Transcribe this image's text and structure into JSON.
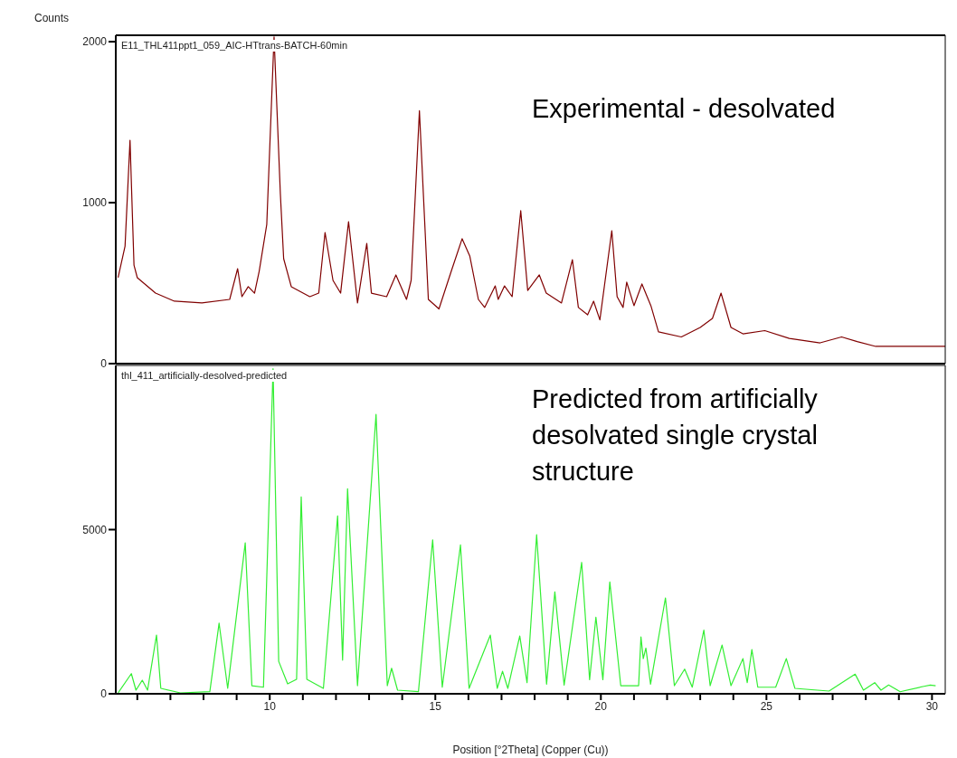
{
  "chart_data": [
    {
      "type": "line",
      "ylabel": "Counts",
      "tick_labels": "y",
      "xlim": [
        5.35,
        30.4
      ],
      "ylim": [
        0,
        2040
      ],
      "yticks": [
        0,
        1000,
        2000
      ],
      "annotations": [
        "Experimental - desolvated"
      ],
      "x": [
        5.42,
        5.63,
        5.78,
        5.9,
        6.0,
        6.55,
        7.12,
        7.95,
        8.79,
        9.03,
        9.16,
        9.35,
        9.54,
        9.68,
        9.91,
        10.13,
        10.32,
        10.42,
        10.65,
        11.21,
        11.48,
        11.67,
        11.91,
        12.14,
        12.38,
        12.65,
        12.93,
        13.07,
        13.53,
        13.81,
        14.13,
        14.27,
        14.52,
        14.79,
        15.11,
        15.48,
        15.81,
        16.04,
        16.3,
        16.49,
        16.81,
        16.9,
        17.09,
        17.32,
        17.58,
        17.79,
        18.14,
        18.35,
        18.81,
        19.14,
        19.32,
        19.6,
        19.78,
        19.97,
        20.33,
        20.49,
        20.67,
        20.78,
        21.0,
        21.24,
        21.51,
        21.74,
        22.43,
        23.0,
        23.37,
        23.63,
        23.93,
        24.29,
        24.95,
        25.69,
        26.62,
        27.27,
        27.74,
        28.3,
        29.41,
        30.4
      ],
      "series": [
        {
          "name": "E11_THL411ppt1_059_AIC-HTtrans-BATCH-60min",
          "color": "#800000",
          "values": [
            534,
            730,
            1388,
            612,
            534,
            438,
            388,
            377,
            399,
            590,
            416,
            478,
            438,
            573,
            865,
            2030,
            1057,
            652,
            478,
            416,
            438,
            815,
            517,
            438,
            882,
            377,
            747,
            438,
            416,
            551,
            399,
            517,
            1571,
            399,
            340,
            573,
            776,
            669,
            399,
            349,
            483,
            399,
            483,
            416,
            950,
            455,
            551,
            438,
            377,
            646,
            349,
            303,
            388,
            272,
            826,
            416,
            349,
            506,
            360,
            495,
            360,
            197,
            166,
            225,
            281,
            438,
            225,
            185,
            205,
            157,
            129,
            166,
            137,
            107,
            107,
            107
          ]
        }
      ]
    },
    {
      "type": "line",
      "xlabel": "Position [°2Theta] (Copper (Cu))",
      "xlim": [
        5.35,
        30.4
      ],
      "ylim": [
        0,
        10000
      ],
      "yticks": [
        0,
        5000
      ],
      "annotations": [
        "Predicted from artificially desolvated single crystal structure"
      ],
      "xticks": [
        {
          "value": 6,
          "label": null
        },
        {
          "value": 7,
          "label": null
        },
        {
          "value": 8,
          "label": null
        },
        {
          "value": 9,
          "label": null
        },
        10,
        {
          "value": 11,
          "label": null
        },
        {
          "value": 12,
          "label": null
        },
        {
          "value": 13,
          "label": null
        },
        {
          "value": 14,
          "label": null
        },
        15,
        {
          "value": 16,
          "label": null
        },
        {
          "value": 17,
          "label": null
        },
        {
          "value": 18,
          "label": null
        },
        {
          "value": 19,
          "label": null
        },
        20,
        {
          "value": 21,
          "label": null
        },
        {
          "value": 22,
          "label": null
        },
        {
          "value": 23,
          "label": null
        },
        {
          "value": 24,
          "label": null
        },
        25,
        {
          "value": 26,
          "label": null
        },
        {
          "value": 27,
          "label": null
        },
        {
          "value": 28,
          "label": null
        },
        {
          "value": 29,
          "label": null
        },
        30
      ],
      "x": [
        5.42,
        5.82,
        5.96,
        6.15,
        6.31,
        6.58,
        6.71,
        7.3,
        8.19,
        8.47,
        8.73,
        9.26,
        9.46,
        9.81,
        10.1,
        10.27,
        10.54,
        10.81,
        10.95,
        11.12,
        11.62,
        12.05,
        12.2,
        12.35,
        12.65,
        13.21,
        13.55,
        13.68,
        13.86,
        14.49,
        14.92,
        15.21,
        15.76,
        16.02,
        16.66,
        16.87,
        17.03,
        17.19,
        17.55,
        17.77,
        18.06,
        18.36,
        18.61,
        18.89,
        19.42,
        19.66,
        19.85,
        20.06,
        20.27,
        20.6,
        21.14,
        21.21,
        21.28,
        21.36,
        21.5,
        21.95,
        22.22,
        22.53,
        22.76,
        23.11,
        23.3,
        23.66,
        23.93,
        24.29,
        24.42,
        24.56,
        24.74,
        25.28,
        25.6,
        25.86,
        26.89,
        27.68,
        27.93,
        28.27,
        28.46,
        28.69,
        29.04,
        29.76,
        29.95,
        30.11
      ],
      "series": [
        {
          "name": "thl_411_artificially-desolved-predicted",
          "color": "#33ee33",
          "values": [
            27,
            613,
            110,
            412,
            110,
            1786,
            165,
            27,
            63,
            2150,
            165,
            4596,
            247,
            200,
            9900,
            989,
            302,
            440,
            5997,
            440,
            165,
            5420,
            1025,
            6245,
            247,
            8510,
            247,
            778,
            110,
            63,
            4689,
            200,
            4533,
            165,
            1786,
            165,
            687,
            165,
            1758,
            338,
            4843,
            294,
            3104,
            266,
            4002,
            431,
            2335,
            431,
            3406,
            247,
            247,
            1731,
            1071,
            1392,
            294,
            2920,
            247,
            751,
            200,
            1942,
            247,
            1483,
            247,
            1071,
            338,
            1346,
            200,
            200,
            1071,
            165,
            82,
            596,
            110,
            338,
            110,
            266,
            63,
            228,
            266,
            247
          ]
        }
      ]
    }
  ]
}
